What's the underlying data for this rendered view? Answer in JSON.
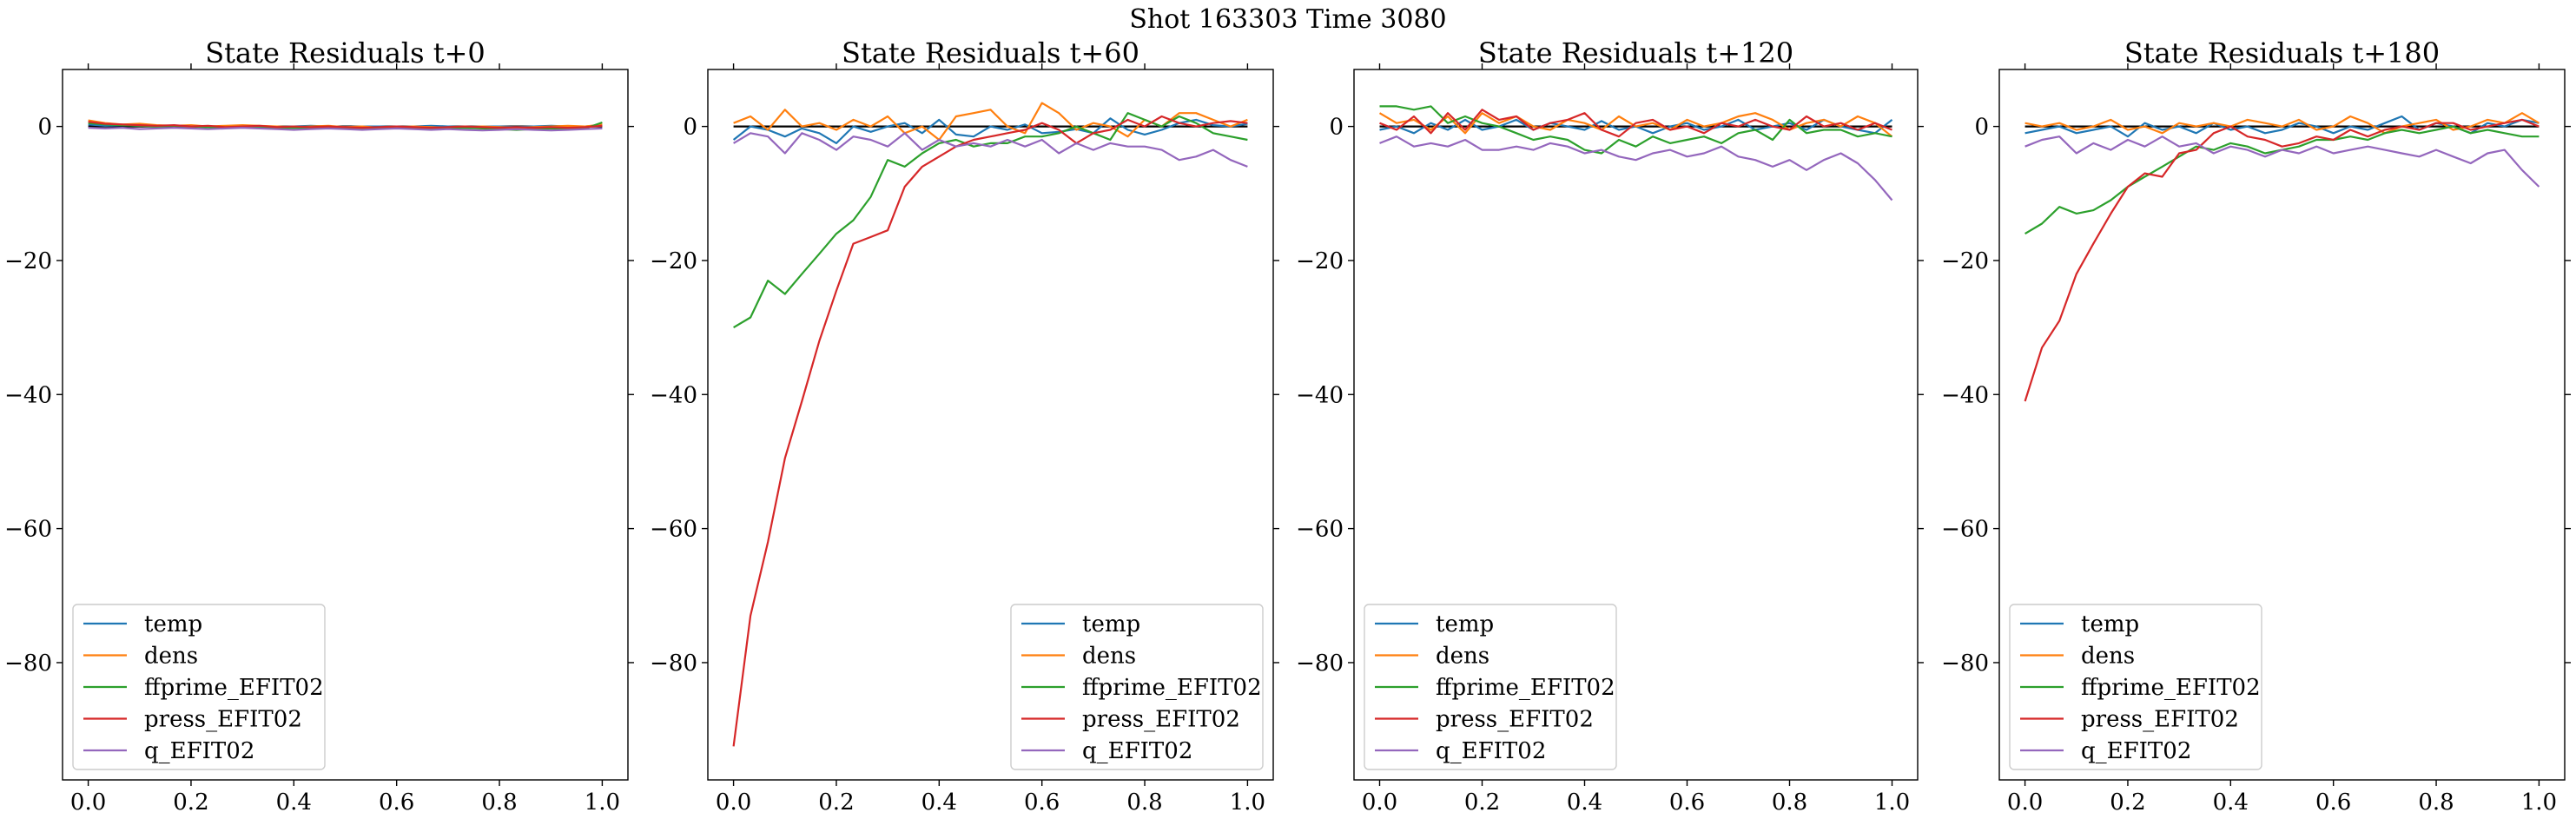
{
  "suptitle": "Shot 163303   Time 3080",
  "chart_data": [
    {
      "type": "line",
      "title": "State Residuals t+0",
      "xlim": [
        -0.05,
        1.05
      ],
      "ylim": [
        -97.5,
        8.5
      ],
      "xticks": [
        0.0,
        0.2,
        0.4,
        0.6,
        0.8,
        1.0
      ],
      "xtick_labels": [
        "0.0",
        "0.2",
        "0.4",
        "0.6",
        "0.8",
        "1.0"
      ],
      "yticks": [
        0,
        -20,
        -40,
        -60,
        -80
      ],
      "ytick_labels": [
        "0",
        "−20",
        "−40",
        "−60",
        "−80"
      ],
      "zero_line": true,
      "legend_position": "lower left",
      "x": [
        0.0,
        0.033,
        0.067,
        0.1,
        0.133,
        0.167,
        0.2,
        0.233,
        0.267,
        0.3,
        0.333,
        0.367,
        0.4,
        0.433,
        0.467,
        0.5,
        0.533,
        0.567,
        0.6,
        0.633,
        0.667,
        0.7,
        0.733,
        0.767,
        0.8,
        0.833,
        0.867,
        0.9,
        0.933,
        0.967,
        1.0
      ],
      "series": [
        {
          "name": "temp",
          "color": "#1f77b4",
          "values": [
            0.3,
            0.1,
            0.2,
            0.1,
            0.0,
            0.1,
            0.0,
            -0.1,
            0.0,
            0.1,
            0.0,
            -0.1,
            0.0,
            0.1,
            0.0,
            -0.1,
            0.0,
            0.0,
            -0.1,
            0.0,
            0.1,
            0.0,
            -0.1,
            0.0,
            0.0,
            -0.1,
            0.0,
            0.1,
            0.0,
            0.0,
            0.2
          ]
        },
        {
          "name": "dens",
          "color": "#ff7f0e",
          "values": [
            0.9,
            0.5,
            0.3,
            0.4,
            0.2,
            0.1,
            0.2,
            0.0,
            0.1,
            0.2,
            0.1,
            0.0,
            -0.1,
            0.0,
            0.1,
            -0.1,
            0.0,
            -0.2,
            -0.1,
            0.0,
            -0.1,
            -0.2,
            -0.1,
            0.0,
            -0.1,
            -0.2,
            -0.1,
            0.0,
            0.1,
            0.0,
            0.3
          ]
        },
        {
          "name": "ffprime_EFIT02",
          "color": "#2ca02c",
          "values": [
            0.5,
            0.3,
            0.2,
            0.1,
            0.0,
            0.1,
            0.0,
            -0.1,
            -0.2,
            -0.1,
            -0.2,
            -0.3,
            -0.2,
            -0.3,
            -0.2,
            -0.3,
            -0.4,
            -0.3,
            -0.2,
            -0.3,
            -0.4,
            -0.3,
            -0.2,
            -0.3,
            -0.4,
            -0.5,
            -0.4,
            -0.3,
            -0.4,
            -0.3,
            0.6
          ]
        },
        {
          "name": "press_EFIT02",
          "color": "#d62728",
          "values": [
            0.7,
            0.4,
            0.3,
            0.2,
            0.1,
            0.2,
            0.0,
            0.1,
            -0.1,
            0.0,
            0.1,
            -0.1,
            0.0,
            -0.1,
            0.0,
            -0.1,
            -0.2,
            -0.1,
            0.0,
            -0.1,
            -0.2,
            -0.1,
            0.0,
            -0.1,
            -0.2,
            -0.1,
            -0.2,
            -0.1,
            -0.2,
            -0.1,
            0.1
          ]
        },
        {
          "name": "q_EFIT02",
          "color": "#9467bd",
          "values": [
            -0.2,
            -0.3,
            -0.2,
            -0.4,
            -0.3,
            -0.2,
            -0.3,
            -0.4,
            -0.3,
            -0.2,
            -0.3,
            -0.4,
            -0.5,
            -0.4,
            -0.3,
            -0.4,
            -0.5,
            -0.4,
            -0.3,
            -0.4,
            -0.5,
            -0.4,
            -0.5,
            -0.6,
            -0.5,
            -0.4,
            -0.5,
            -0.6,
            -0.5,
            -0.4,
            -0.3
          ]
        }
      ]
    },
    {
      "type": "line",
      "title": "State Residuals t+60",
      "xlim": [
        -0.05,
        1.05
      ],
      "ylim": [
        -97.5,
        8.5
      ],
      "xticks": [
        0.0,
        0.2,
        0.4,
        0.6,
        0.8,
        1.0
      ],
      "xtick_labels": [
        "0.0",
        "0.2",
        "0.4",
        "0.6",
        "0.8",
        "1.0"
      ],
      "yticks": [
        0,
        -20,
        -40,
        -60,
        -80
      ],
      "ytick_labels": [
        "0",
        "−20",
        "−40",
        "−60",
        "−80"
      ],
      "zero_line": true,
      "legend_position": "lower right",
      "x": [
        0.0,
        0.033,
        0.067,
        0.1,
        0.133,
        0.167,
        0.2,
        0.233,
        0.267,
        0.3,
        0.333,
        0.367,
        0.4,
        0.433,
        0.467,
        0.5,
        0.533,
        0.567,
        0.6,
        0.633,
        0.667,
        0.7,
        0.733,
        0.767,
        0.8,
        0.833,
        0.867,
        0.9,
        0.933,
        0.967,
        1.0
      ],
      "series": [
        {
          "name": "temp",
          "color": "#1f77b4",
          "values": [
            -2.0,
            0.0,
            -0.5,
            -1.5,
            -0.3,
            -1.0,
            -2.5,
            0.0,
            -0.8,
            0.0,
            0.5,
            -1.0,
            1.0,
            -1.2,
            -1.5,
            0.0,
            -0.5,
            0.3,
            -1.0,
            -0.8,
            -0.4,
            -1.0,
            1.2,
            -0.5,
            -1.2,
            -0.5,
            0.5,
            1.0,
            0.2,
            0.0,
            0.4
          ]
        },
        {
          "name": "dens",
          "color": "#ff7f0e",
          "values": [
            0.5,
            1.5,
            -0.5,
            2.5,
            0.0,
            0.5,
            -0.5,
            1.0,
            0.0,
            1.5,
            -1.0,
            0.0,
            -2.0,
            1.5,
            2.0,
            2.5,
            0.0,
            -1.0,
            3.5,
            2.0,
            -0.5,
            0.5,
            0.0,
            -1.5,
            1.0,
            0.0,
            2.0,
            2.0,
            1.0,
            0.0,
            1.0
          ]
        },
        {
          "name": "ffprime_EFIT02",
          "color": "#2ca02c",
          "values": [
            -30.0,
            -28.5,
            -23.0,
            -25.0,
            -22.0,
            -19.0,
            -16.0,
            -14.0,
            -10.5,
            -5.0,
            -6.0,
            -4.0,
            -2.5,
            -2.0,
            -3.0,
            -2.5,
            -2.5,
            -1.5,
            -1.5,
            -1.0,
            0.0,
            -1.0,
            -2.0,
            2.0,
            1.0,
            0.0,
            1.5,
            0.5,
            -1.0,
            -1.5,
            -2.0
          ]
        },
        {
          "name": "press_EFIT02",
          "color": "#d62728",
          "values": [
            -92.5,
            -73.0,
            -62.0,
            -49.5,
            -41.0,
            -32.0,
            -24.5,
            -17.5,
            -16.5,
            -15.5,
            -9.0,
            -6.0,
            -4.5,
            -3.0,
            -2.0,
            -1.5,
            -1.0,
            -0.5,
            0.5,
            -0.5,
            -2.5,
            -1.0,
            -0.5,
            1.0,
            0.0,
            1.5,
            0.5,
            0.0,
            0.5,
            0.8,
            0.5
          ]
        },
        {
          "name": "q_EFIT02",
          "color": "#9467bd",
          "values": [
            -2.5,
            -1.0,
            -1.5,
            -4.0,
            -1.0,
            -2.0,
            -3.5,
            -1.5,
            -2.0,
            -3.0,
            -1.0,
            -3.5,
            -2.0,
            -3.0,
            -2.5,
            -3.0,
            -2.0,
            -3.0,
            -2.0,
            -4.0,
            -2.5,
            -3.5,
            -2.5,
            -3.0,
            -3.0,
            -3.5,
            -5.0,
            -4.5,
            -3.5,
            -5.0,
            -6.0
          ]
        }
      ]
    },
    {
      "type": "line",
      "title": "State Residuals t+120",
      "xlim": [
        -0.05,
        1.05
      ],
      "ylim": [
        -97.5,
        8.5
      ],
      "xticks": [
        0.0,
        0.2,
        0.4,
        0.6,
        0.8,
        1.0
      ],
      "xtick_labels": [
        "0.0",
        "0.2",
        "0.4",
        "0.6",
        "0.8",
        "1.0"
      ],
      "yticks": [
        0,
        -20,
        -40,
        -60,
        -80
      ],
      "ytick_labels": [
        "0",
        "−20",
        "−40",
        "−60",
        "−80"
      ],
      "zero_line": true,
      "legend_position": "lower left",
      "x": [
        0.0,
        0.033,
        0.067,
        0.1,
        0.133,
        0.167,
        0.2,
        0.233,
        0.267,
        0.3,
        0.333,
        0.367,
        0.4,
        0.433,
        0.467,
        0.5,
        0.533,
        0.567,
        0.6,
        0.633,
        0.667,
        0.7,
        0.733,
        0.767,
        0.8,
        0.833,
        0.867,
        0.9,
        0.933,
        0.967,
        1.0
      ],
      "series": [
        {
          "name": "temp",
          "color": "#1f77b4",
          "values": [
            -0.5,
            0.0,
            -1.0,
            0.5,
            -0.5,
            1.0,
            -0.5,
            0.0,
            1.0,
            -0.5,
            0.5,
            0.0,
            -0.5,
            0.8,
            -0.5,
            0.0,
            -1.0,
            0.0,
            0.5,
            -0.5,
            0.0,
            1.0,
            -0.5,
            0.0,
            0.5,
            -0.5,
            1.0,
            0.0,
            -0.5,
            -1.0,
            1.0
          ]
        },
        {
          "name": "dens",
          "color": "#ff7f0e",
          "values": [
            2.0,
            0.5,
            1.0,
            -0.5,
            1.5,
            -1.0,
            2.0,
            0.5,
            1.5,
            0.0,
            -0.5,
            1.0,
            0.5,
            -0.5,
            1.5,
            0.0,
            0.5,
            -0.5,
            1.0,
            0.0,
            0.5,
            1.5,
            2.0,
            1.0,
            -0.5,
            0.5,
            1.0,
            0.0,
            1.5,
            0.5,
            -1.5
          ]
        },
        {
          "name": "ffprime_EFIT02",
          "color": "#2ca02c",
          "values": [
            3.0,
            3.0,
            2.5,
            3.0,
            0.5,
            1.5,
            0.5,
            0.0,
            -1.0,
            -2.0,
            -1.5,
            -2.0,
            -3.5,
            -4.0,
            -2.0,
            -3.0,
            -1.5,
            -2.5,
            -2.0,
            -1.5,
            -2.5,
            -1.0,
            -0.5,
            -2.0,
            1.0,
            -1.0,
            -0.5,
            -0.5,
            -1.5,
            -1.0,
            -1.5
          ]
        },
        {
          "name": "press_EFIT02",
          "color": "#d62728",
          "values": [
            0.5,
            -0.5,
            1.5,
            -1.0,
            2.0,
            -0.5,
            2.5,
            1.0,
            1.5,
            -0.5,
            0.5,
            1.0,
            2.0,
            -0.5,
            -1.5,
            0.5,
            1.0,
            -0.5,
            0.0,
            -1.0,
            0.5,
            0.0,
            1.0,
            0.0,
            -0.5,
            1.5,
            0.0,
            0.5,
            -0.5,
            0.5,
            -0.5
          ]
        },
        {
          "name": "q_EFIT02",
          "color": "#9467bd",
          "values": [
            -2.5,
            -1.5,
            -3.0,
            -2.5,
            -3.0,
            -2.0,
            -3.5,
            -3.5,
            -3.0,
            -3.5,
            -2.5,
            -3.0,
            -4.0,
            -3.5,
            -4.5,
            -5.0,
            -4.0,
            -3.5,
            -4.5,
            -4.0,
            -3.0,
            -4.5,
            -5.0,
            -6.0,
            -5.0,
            -6.5,
            -5.0,
            -4.0,
            -5.5,
            -8.0,
            -11.0
          ]
        }
      ]
    },
    {
      "type": "line",
      "title": "State Residuals t+180",
      "xlim": [
        -0.05,
        1.05
      ],
      "ylim": [
        -97.5,
        8.5
      ],
      "xticks": [
        0.0,
        0.2,
        0.4,
        0.6,
        0.8,
        1.0
      ],
      "xtick_labels": [
        "0.0",
        "0.2",
        "0.4",
        "0.6",
        "0.8",
        "1.0"
      ],
      "yticks": [
        0,
        -20,
        -40,
        -60,
        -80
      ],
      "ytick_labels": [
        "0",
        "−20",
        "−40",
        "−60",
        "−80"
      ],
      "zero_line": true,
      "legend_position": "lower left",
      "x": [
        0.0,
        0.033,
        0.067,
        0.1,
        0.133,
        0.167,
        0.2,
        0.233,
        0.267,
        0.3,
        0.333,
        0.367,
        0.4,
        0.433,
        0.467,
        0.5,
        0.533,
        0.567,
        0.6,
        0.633,
        0.667,
        0.7,
        0.733,
        0.767,
        0.8,
        0.833,
        0.867,
        0.9,
        0.933,
        0.967,
        1.0
      ],
      "series": [
        {
          "name": "temp",
          "color": "#1f77b4",
          "values": [
            -1.0,
            -0.5,
            0.0,
            -1.0,
            -0.5,
            0.0,
            -1.5,
            0.5,
            -0.5,
            0.0,
            -1.0,
            0.5,
            -0.5,
            0.0,
            -1.0,
            -0.5,
            0.5,
            0.0,
            -1.0,
            0.0,
            -0.5,
            0.5,
            1.5,
            -0.5,
            0.5,
            0.0,
            -1.0,
            0.5,
            0.0,
            1.0,
            0.5
          ]
        },
        {
          "name": "dens",
          "color": "#ff7f0e",
          "values": [
            0.5,
            0.0,
            0.5,
            -0.5,
            0.0,
            1.0,
            -0.5,
            0.0,
            -1.0,
            0.5,
            0.0,
            0.5,
            0.0,
            1.0,
            0.5,
            0.0,
            1.0,
            -0.5,
            0.0,
            1.5,
            0.5,
            -1.0,
            0.0,
            0.5,
            1.0,
            -0.5,
            0.0,
            1.0,
            0.5,
            2.0,
            0.5
          ]
        },
        {
          "name": "ffprime_EFIT02",
          "color": "#2ca02c",
          "values": [
            -16.0,
            -14.5,
            -12.0,
            -13.0,
            -12.5,
            -11.0,
            -9.0,
            -7.5,
            -6.0,
            -4.5,
            -3.0,
            -3.5,
            -2.5,
            -3.0,
            -4.0,
            -3.5,
            -3.0,
            -2.0,
            -2.0,
            -1.5,
            -2.0,
            -1.0,
            -0.5,
            -1.0,
            -0.5,
            0.0,
            -1.0,
            -0.5,
            -1.0,
            -1.5,
            -1.5
          ]
        },
        {
          "name": "press_EFIT02",
          "color": "#d62728",
          "values": [
            -41.0,
            -33.0,
            -29.0,
            -22.0,
            -17.5,
            -13.0,
            -9.0,
            -7.0,
            -7.5,
            -4.0,
            -3.5,
            -1.0,
            0.0,
            -1.5,
            -2.0,
            -3.0,
            -2.5,
            -1.5,
            -2.0,
            -0.5,
            -1.5,
            -0.5,
            0.0,
            -0.5,
            0.5,
            0.5,
            -0.5,
            0.0,
            0.5,
            1.0,
            0.0
          ]
        },
        {
          "name": "q_EFIT02",
          "color": "#9467bd",
          "values": [
            -3.0,
            -2.0,
            -1.5,
            -4.0,
            -2.5,
            -3.5,
            -2.0,
            -3.0,
            -1.5,
            -3.0,
            -2.5,
            -4.0,
            -3.0,
            -3.5,
            -4.5,
            -3.5,
            -4.0,
            -3.0,
            -4.0,
            -3.5,
            -3.0,
            -3.5,
            -4.0,
            -4.5,
            -3.5,
            -4.5,
            -5.5,
            -4.0,
            -3.5,
            -6.5,
            -9.0
          ]
        }
      ]
    }
  ]
}
